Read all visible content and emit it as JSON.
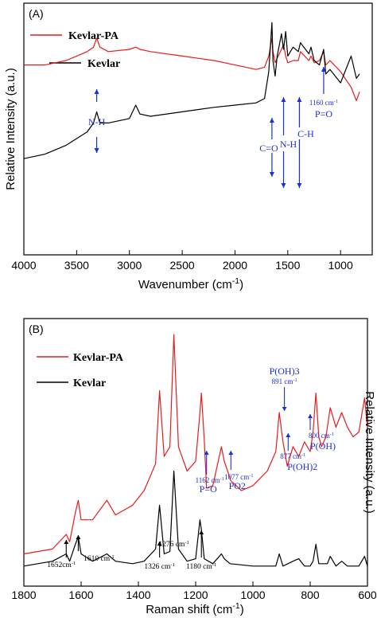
{
  "chart_data": [
    {
      "type": "line",
      "panel_label": "(A)",
      "xlabel": "Wavenumber (cm-1)",
      "ylabel": "Relative Intensity (a.u.)",
      "xlim": [
        4000,
        700
      ],
      "xticks": [
        "4000",
        "3500",
        "3000",
        "2500",
        "2000",
        "1500",
        "1000"
      ],
      "legend": {
        "placement": "top-left",
        "entries": [
          "Kevlar-PA",
          "Kevlar"
        ]
      },
      "colors": {
        "Kevlar-PA": "#e81c1c",
        "Kevlar": "#000000"
      },
      "series": [
        {
          "name": "Kevlar-PA",
          "x": [
            4000,
            3800,
            3600,
            3500,
            3400,
            3340,
            3310,
            3280,
            3200,
            3000,
            2940,
            2900,
            2800,
            2500,
            2200,
            2000,
            1800,
            1720,
            1680,
            1650,
            1640,
            1620,
            1600,
            1540,
            1520,
            1500,
            1450,
            1400,
            1380,
            1300,
            1280,
            1250,
            1200,
            1160,
            1140,
            1100,
            1000,
            900,
            850,
            820
          ],
          "y": [
            0.78,
            0.78,
            0.8,
            0.82,
            0.84,
            0.86,
            0.9,
            0.86,
            0.84,
            0.85,
            0.86,
            0.85,
            0.84,
            0.82,
            0.8,
            0.78,
            0.76,
            0.77,
            0.82,
            0.9,
            0.84,
            0.79,
            0.81,
            0.87,
            0.82,
            0.79,
            0.8,
            0.8,
            0.84,
            0.8,
            0.82,
            0.79,
            0.8,
            0.84,
            0.78,
            0.8,
            0.75,
            0.68,
            0.62,
            0.66
          ]
        },
        {
          "name": "Kevlar",
          "x": [
            4000,
            3800,
            3600,
            3500,
            3400,
            3340,
            3310,
            3280,
            3200,
            3000,
            2940,
            2900,
            2800,
            2500,
            2200,
            2000,
            1800,
            1720,
            1680,
            1650,
            1640,
            1620,
            1600,
            1560,
            1540,
            1520,
            1500,
            1450,
            1400,
            1380,
            1300,
            1280,
            1250,
            1200,
            1160,
            1140,
            1100,
            1000,
            900,
            850,
            820
          ],
          "y": [
            0.36,
            0.38,
            0.42,
            0.45,
            0.48,
            0.52,
            0.57,
            0.52,
            0.52,
            0.54,
            0.6,
            0.56,
            0.55,
            0.57,
            0.59,
            0.6,
            0.61,
            0.63,
            0.75,
            0.97,
            0.8,
            0.73,
            0.82,
            0.92,
            0.85,
            0.93,
            0.82,
            0.86,
            0.84,
            0.88,
            0.83,
            0.86,
            0.8,
            0.78,
            0.85,
            0.74,
            0.76,
            0.7,
            0.82,
            0.72,
            0.74
          ]
        }
      ],
      "annotations": [
        {
          "text": "N-H",
          "x": 3310
        },
        {
          "text": "C=O",
          "x": 1650
        },
        {
          "text": "N-H",
          "x": 1540
        },
        {
          "text": "C-H",
          "x": 1390
        },
        {
          "text": "1160 cm-1",
          "x": 1160
        },
        {
          "text": "P=O",
          "x": 1160
        }
      ]
    },
    {
      "type": "line",
      "panel_label": "(B)",
      "xlabel": "Raman shift (cm-1)",
      "ylabel": "Relative Intensity (a.u.)",
      "xlim": [
        1800,
        600
      ],
      "xticks": [
        "1800",
        "1600",
        "1400",
        "1200",
        "1000",
        "800",
        "600"
      ],
      "legend": {
        "placement": "top-left",
        "entries": [
          "Kevlar-PA",
          "Kevlar"
        ]
      },
      "colors": {
        "Kevlar-PA": "#e81c1c",
        "Kevlar": "#000000"
      },
      "series": [
        {
          "name": "Kevlar-PA",
          "x": [
            1800,
            1700,
            1652,
            1640,
            1620,
            1610,
            1600,
            1560,
            1510,
            1480,
            1420,
            1380,
            1340,
            1326,
            1310,
            1290,
            1276,
            1260,
            1230,
            1200,
            1185,
            1180,
            1170,
            1162,
            1140,
            1110,
            1100,
            1077,
            1040,
            1000,
            950,
            920,
            908,
            895,
            880,
            860,
            840,
            820,
            800,
            790,
            780,
            770,
            760,
            745,
            730,
            710,
            690,
            670,
            650,
            630,
            610,
            600
          ],
          "y": [
            0.08,
            0.1,
            0.16,
            0.13,
            0.25,
            0.3,
            0.22,
            0.22,
            0.3,
            0.24,
            0.28,
            0.34,
            0.45,
            0.75,
            0.48,
            0.52,
            0.98,
            0.52,
            0.42,
            0.46,
            0.66,
            0.74,
            0.55,
            0.35,
            0.36,
            0.52,
            0.46,
            0.38,
            0.34,
            0.36,
            0.42,
            0.5,
            0.66,
            0.54,
            0.44,
            0.52,
            0.48,
            0.54,
            0.5,
            0.58,
            0.74,
            0.56,
            0.52,
            0.56,
            0.68,
            0.6,
            0.66,
            0.6,
            0.56,
            0.58,
            0.72,
            0.6
          ]
        },
        {
          "name": "Kevlar",
          "x": [
            1800,
            1700,
            1652,
            1640,
            1620,
            1610,
            1600,
            1560,
            1510,
            1480,
            1420,
            1380,
            1340,
            1326,
            1310,
            1290,
            1276,
            1260,
            1230,
            1200,
            1185,
            1180,
            1170,
            1140,
            1110,
            1100,
            1080,
            1000,
            950,
            920,
            908,
            895,
            860,
            840,
            820,
            800,
            790,
            780,
            770,
            740,
            730,
            710,
            690,
            670,
            650,
            630,
            610,
            600
          ],
          "y": [
            0.03,
            0.05,
            0.08,
            0.05,
            0.12,
            0.15,
            0.08,
            0.05,
            0.08,
            0.05,
            0.04,
            0.05,
            0.1,
            0.28,
            0.08,
            0.09,
            0.42,
            0.1,
            0.05,
            0.06,
            0.22,
            0.18,
            0.06,
            0.04,
            0.08,
            0.06,
            0.04,
            0.03,
            0.03,
            0.03,
            0.08,
            0.03,
            0.05,
            0.06,
            0.03,
            0.03,
            0.05,
            0.12,
            0.04,
            0.04,
            0.07,
            0.03,
            0.05,
            0.03,
            0.03,
            0.03,
            0.07,
            0.03
          ]
        }
      ],
      "annotations": {
        "blue": [
          {
            "text": "P(OH)3",
            "x": 890
          },
          {
            "text": "891 cm-1",
            "x": 890
          },
          {
            "text": "1162 cm-1",
            "x": 1162
          },
          {
            "text": "P=O",
            "x": 1162
          },
          {
            "text": "1077 cm-1",
            "x": 1077
          },
          {
            "text": "PO2",
            "x": 1077
          },
          {
            "text": "877 cm-1",
            "x": 877
          },
          {
            "text": "P(OH)2",
            "x": 877
          },
          {
            "text": "800 cm-1",
            "x": 800
          },
          {
            "text": "P(OH)",
            "x": 800
          }
        ],
        "black": [
          {
            "text": "1652cm-1",
            "x": 1652
          },
          {
            "text": "1610 cm-1",
            "x": 1610
          },
          {
            "text": "1326 cm-1",
            "x": 1326
          },
          {
            "text": "1276 cm-1",
            "x": 1276
          },
          {
            "text": "1180 cm-1",
            "x": 1180
          }
        ]
      }
    }
  ]
}
